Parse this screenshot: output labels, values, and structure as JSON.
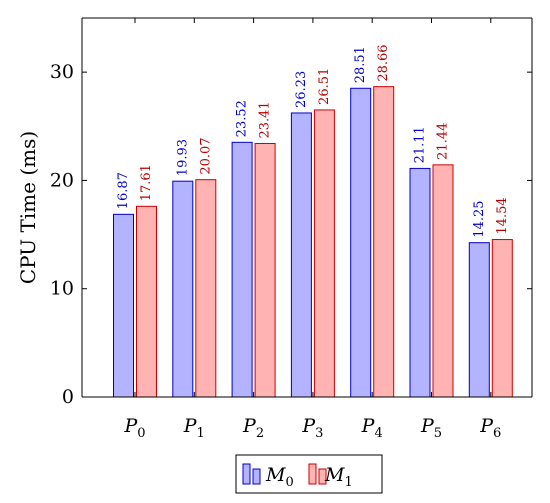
{
  "chart_data": {
    "type": "bar",
    "categories": [
      "P0",
      "P1",
      "P2",
      "P3",
      "P4",
      "P5",
      "P6"
    ],
    "category_labels": [
      {
        "base": "P",
        "sub": "0"
      },
      {
        "base": "P",
        "sub": "1"
      },
      {
        "base": "P",
        "sub": "2"
      },
      {
        "base": "P",
        "sub": "3"
      },
      {
        "base": "P",
        "sub": "4"
      },
      {
        "base": "P",
        "sub": "5"
      },
      {
        "base": "P",
        "sub": "6"
      }
    ],
    "series": [
      {
        "name": "M0",
        "name_base": "M",
        "name_sub": "0",
        "values": [
          16.87,
          19.93,
          23.52,
          26.23,
          28.51,
          21.11,
          14.25
        ],
        "value_labels": [
          "16.87",
          "19.93",
          "23.52",
          "26.23",
          "28.51",
          "21.11",
          "14.25"
        ],
        "fill": "#b3b3ff",
        "stroke": "#0000cc",
        "label_color": "#0000cc"
      },
      {
        "name": "M1",
        "name_base": "M",
        "name_sub": "1",
        "values": [
          17.61,
          20.07,
          23.41,
          26.51,
          28.66,
          21.44,
          14.54
        ],
        "value_labels": [
          "17.61",
          "20.07",
          "23.41",
          "26.51",
          "28.66",
          "21.44",
          "14.54"
        ],
        "fill": "#ffb3b3",
        "stroke": "#cc0000",
        "label_color": "#b30000"
      }
    ],
    "ylabel": "CPU Time (ms)",
    "ylim": [
      0,
      35
    ],
    "yticks": [
      0,
      10,
      20,
      30
    ],
    "ytick_labels": [
      "0",
      "10",
      "20",
      "30"
    ],
    "legend_position": "bottom",
    "grid": false
  }
}
